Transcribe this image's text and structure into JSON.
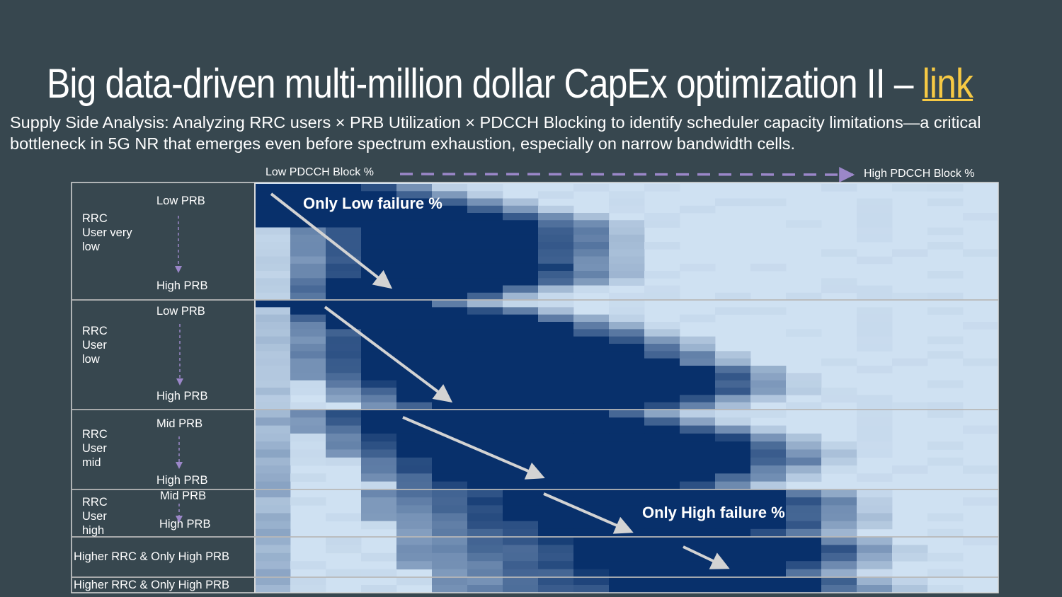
{
  "slide": {
    "title_main": "Big data-driven multi-million dollar CapEx optimization II – ",
    "title_link": "link",
    "subtitle": "Supply Side Analysis: Analyzing RRC users × PRB Utilization × PDCCH Blocking to identify scheduler capacity limitations—a critical bottleneck in 5G NR that emerges even before spectrum exhaustion, especially on narrow bandwidth cells."
  },
  "colors": {
    "background": "#37474f",
    "link": "#f6c944",
    "arrow_purple": "#9b87c9",
    "heat_low": "#cfe1f2",
    "heat_high": "#08306b",
    "annotation_arrow": "#d3d3d3"
  },
  "chart_data": {
    "type": "heatmap",
    "x_axis": {
      "low_label": "Low PDCCH Block %",
      "high_label": "High PDCCH Block %",
      "columns": 21
    },
    "value_scale": "failure-rate intensity 0 (light) to 1 (dark navy)",
    "bands": [
      {
        "name": "RRC User very low",
        "label": "RRC\nUser very\nlow",
        "prb_top": "Low PRB",
        "prb_bottom": "High PRB",
        "rows": 16,
        "start": [
          0.0,
          0.0,
          0.0,
          0.0,
          0.0,
          0.0,
          1.0,
          1.0,
          1.0,
          1.0,
          1.0,
          1.0,
          1.0,
          1.0,
          1.0,
          1.0
        ],
        "end": [
          4.7,
          5.8,
          6.8,
          7.8,
          8.8,
          9.6,
          10.0,
          10.0,
          10.0,
          10.0,
          10.0,
          10.0,
          10.0,
          9.6,
          8.2,
          7.4
        ],
        "left_light": [
          0.0,
          0.25,
          0.4,
          0.3,
          0.15,
          0.1,
          0.1,
          0.1,
          0.1,
          0.1,
          0.1,
          0.1,
          0.1,
          0.1,
          0.1,
          0.1
        ],
        "left_ramp": [
          0.0,
          0.0,
          0.0,
          0.0,
          0.0,
          0.0,
          2.0,
          2.0,
          2.0,
          2.0,
          2.0,
          2.0,
          2.0,
          1.0,
          1.0,
          1.0
        ]
      },
      {
        "name": "RRC User low",
        "label": "RRC\nUser\nlow",
        "prb_top": "Low PRB",
        "prb_bottom": "High PRB",
        "rows": 15,
        "start": [
          0.0,
          0.7,
          0.8,
          1.0,
          1.0,
          1.0,
          1.0,
          1.0,
          1.0,
          1.0,
          1.3,
          1.6,
          2.0,
          2.5,
          3.0
        ],
        "end": [
          6.4,
          8.0,
          9.4,
          10.4,
          11.0,
          11.6,
          12.2,
          12.8,
          13.2,
          14.2,
          14.5,
          14.5,
          14.5,
          13.8,
          13.0
        ],
        "left_light": [
          0.5,
          0.2,
          0.2,
          0.2,
          0.2,
          0.2,
          0.2,
          0.2,
          0.2,
          0.2,
          0.2,
          0.2,
          0.2,
          0.2,
          0.2
        ],
        "left_ramp": [
          0.0,
          0.0,
          1.0,
          1.5,
          2.0,
          2.0,
          2.0,
          2.0,
          2.0,
          2.0,
          2.0,
          2.0,
          2.0,
          2.0,
          2.0
        ]
      },
      {
        "name": "RRC User mid",
        "label": "RRC\nUser\nmid",
        "prb_top": "Mid PRB",
        "prb_bottom": "High PRB",
        "rows": 10,
        "start": [
          1.0,
          1.2,
          1.5,
          1.8,
          2.0,
          2.3,
          2.6,
          2.9,
          3.2,
          3.6
        ],
        "end": [
          11.5,
          12.6,
          13.6,
          14.8,
          15.4,
          15.8,
          15.8,
          15.2,
          14.6,
          13.8
        ],
        "left_light": [
          0.3,
          0.3,
          0.3,
          0.3,
          0.3,
          0.3,
          0.3,
          0.3,
          0.3,
          0.3
        ],
        "left_ramp": [
          2.0,
          2.0,
          2.0,
          2.0,
          2.0,
          2.0,
          2.0,
          2.0,
          2.0,
          2.0
        ]
      },
      {
        "name": "RRC User high",
        "label": "RRC\nUser\nhigh",
        "prb_top": "Mid PRB",
        "prb_bottom": "High PRB",
        "rows": 6,
        "start": [
          2.8,
          3.0,
          3.2,
          3.4,
          3.6,
          3.8
        ],
        "end": [
          16.4,
          16.8,
          16.8,
          16.8,
          16.6,
          16.0
        ],
        "left_light": [
          0.3,
          0.3,
          0.3,
          0.3,
          0.3,
          0.3
        ],
        "left_ramp": [
          4.0,
          4.0,
          4.0,
          4.0,
          4.0,
          4.0
        ]
      },
      {
        "name": "Higher RRC & Only High PRB",
        "label": "Higher RRC & Only High PRB",
        "rows": 5,
        "start": [
          3.8,
          4.0,
          4.2,
          4.5,
          4.8
        ],
        "end": [
          17.2,
          17.6,
          17.4,
          17.0,
          16.4
        ],
        "left_light": [
          0.3,
          0.3,
          0.3,
          0.3,
          0.3
        ],
        "left_ramp": [
          5.0,
          5.0,
          5.0,
          5.0,
          5.0
        ]
      },
      {
        "name": "Higher RRC & Only High PRB",
        "label": "Higher RRC & Only High PRB",
        "rows": 2,
        "start": [
          5.0,
          5.2
        ],
        "end": [
          17.4,
          17.6
        ],
        "left_light": [
          0.3,
          0.3
        ],
        "left_ramp": [
          5.0,
          5.0
        ]
      }
    ],
    "annotations": {
      "top": "Only Low failure %",
      "bottom": "Only High failure %"
    }
  }
}
